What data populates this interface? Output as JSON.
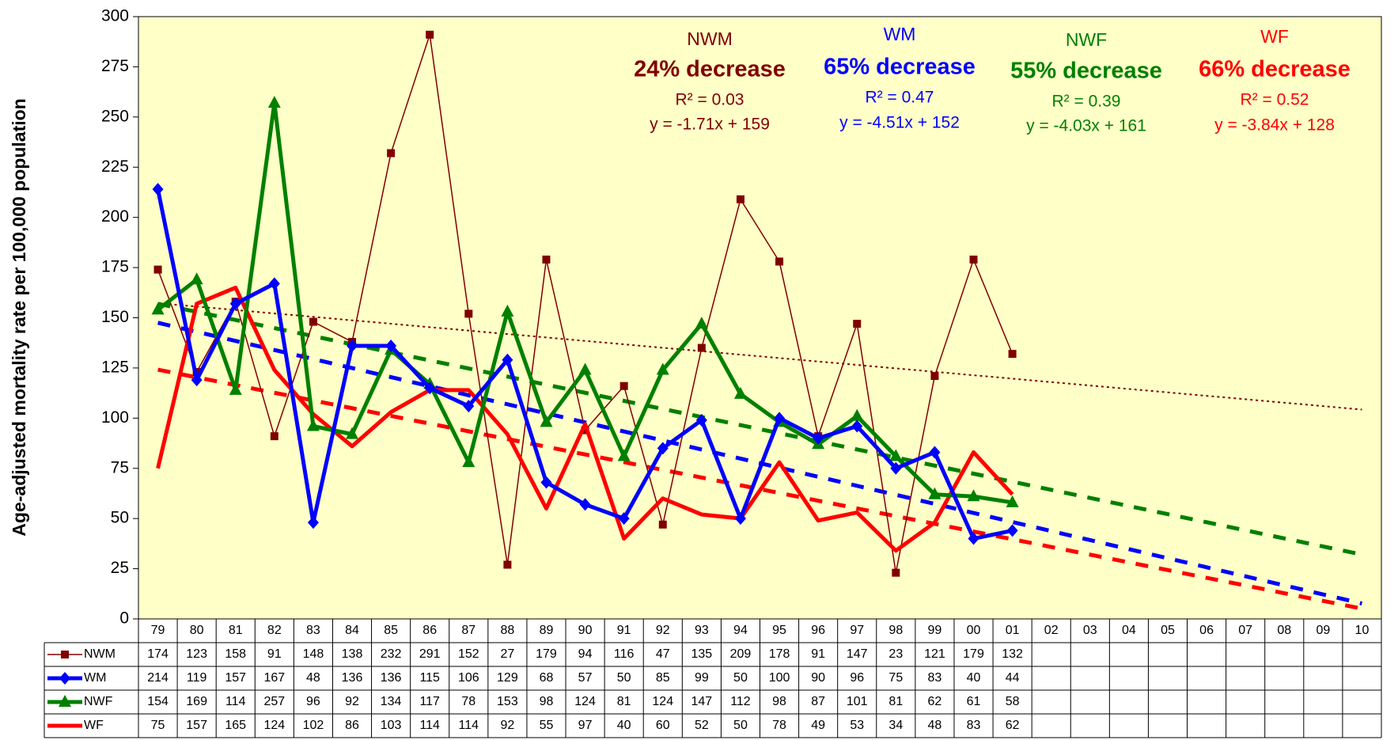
{
  "chart_data": {
    "type": "line",
    "y_label": "Age-adjusted mortality rate per 100,000 population",
    "categories": [
      "79",
      "80",
      "81",
      "82",
      "83",
      "84",
      "85",
      "86",
      "87",
      "88",
      "89",
      "90",
      "91",
      "92",
      "93",
      "94",
      "95",
      "96",
      "97",
      "98",
      "99",
      "00",
      "01",
      "02",
      "03",
      "04",
      "05",
      "06",
      "07",
      "08",
      "09",
      "10"
    ],
    "ylim": [
      0,
      300
    ],
    "yticks": [
      0,
      25,
      50,
      75,
      100,
      125,
      150,
      175,
      200,
      225,
      250,
      275,
      300
    ],
    "background": "#ffffc8",
    "series": [
      {
        "name": "NWM",
        "color": "#800000",
        "marker": "square",
        "line_width": 1.5,
        "values": [
          174,
          123,
          158,
          91,
          148,
          138,
          232,
          291,
          152,
          27,
          179,
          94,
          116,
          47,
          135,
          209,
          178,
          91,
          147,
          23,
          121,
          179,
          132,
          null,
          null,
          null,
          null,
          null,
          null,
          null,
          null,
          null
        ],
        "decrease": "24% decrease",
        "r2_label": "R² = 0.03",
        "equation": "y = -1.71x + 159",
        "trend": {
          "slope": -1.71,
          "intercept": 159
        }
      },
      {
        "name": "WM",
        "color": "#0000ff",
        "marker": "diamond",
        "line_width": 5,
        "values": [
          214,
          119,
          157,
          167,
          48,
          136,
          136,
          115,
          106,
          129,
          68,
          57,
          50,
          85,
          99,
          50,
          100,
          90,
          96,
          75,
          83,
          40,
          44,
          null,
          null,
          null,
          null,
          null,
          null,
          null,
          null,
          null
        ],
        "decrease": "65% decrease",
        "r2_label": "R² = 0.47",
        "equation": "y = -4.51x + 152",
        "trend": {
          "slope": -4.51,
          "intercept": 152
        }
      },
      {
        "name": "NWF",
        "color": "#008000",
        "marker": "triangle",
        "line_width": 5,
        "values": [
          154,
          169,
          114,
          257,
          96,
          92,
          134,
          117,
          78,
          153,
          98,
          124,
          81,
          124,
          147,
          112,
          98,
          87,
          101,
          81,
          62,
          61,
          58,
          null,
          null,
          null,
          null,
          null,
          null,
          null,
          null,
          null
        ],
        "decrease": "55% decrease",
        "r2_label": "R² = 0.39",
        "equation": "y = -4.03x + 161",
        "trend": {
          "slope": -4.03,
          "intercept": 161
        }
      },
      {
        "name": "WF",
        "color": "#ff0000",
        "marker": "none",
        "line_width": 5,
        "values": [
          75,
          157,
          165,
          124,
          102,
          86,
          103,
          114,
          114,
          92,
          55,
          97,
          40,
          60,
          52,
          50,
          78,
          49,
          53,
          34,
          48,
          83,
          62,
          null,
          null,
          null,
          null,
          null,
          null,
          null,
          null,
          null
        ],
        "decrease": "66% decrease",
        "r2_label": "R² = 0.52",
        "equation": "y = -3.84x + 128",
        "trend": {
          "slope": -3.84,
          "intercept": 128
        }
      }
    ]
  }
}
